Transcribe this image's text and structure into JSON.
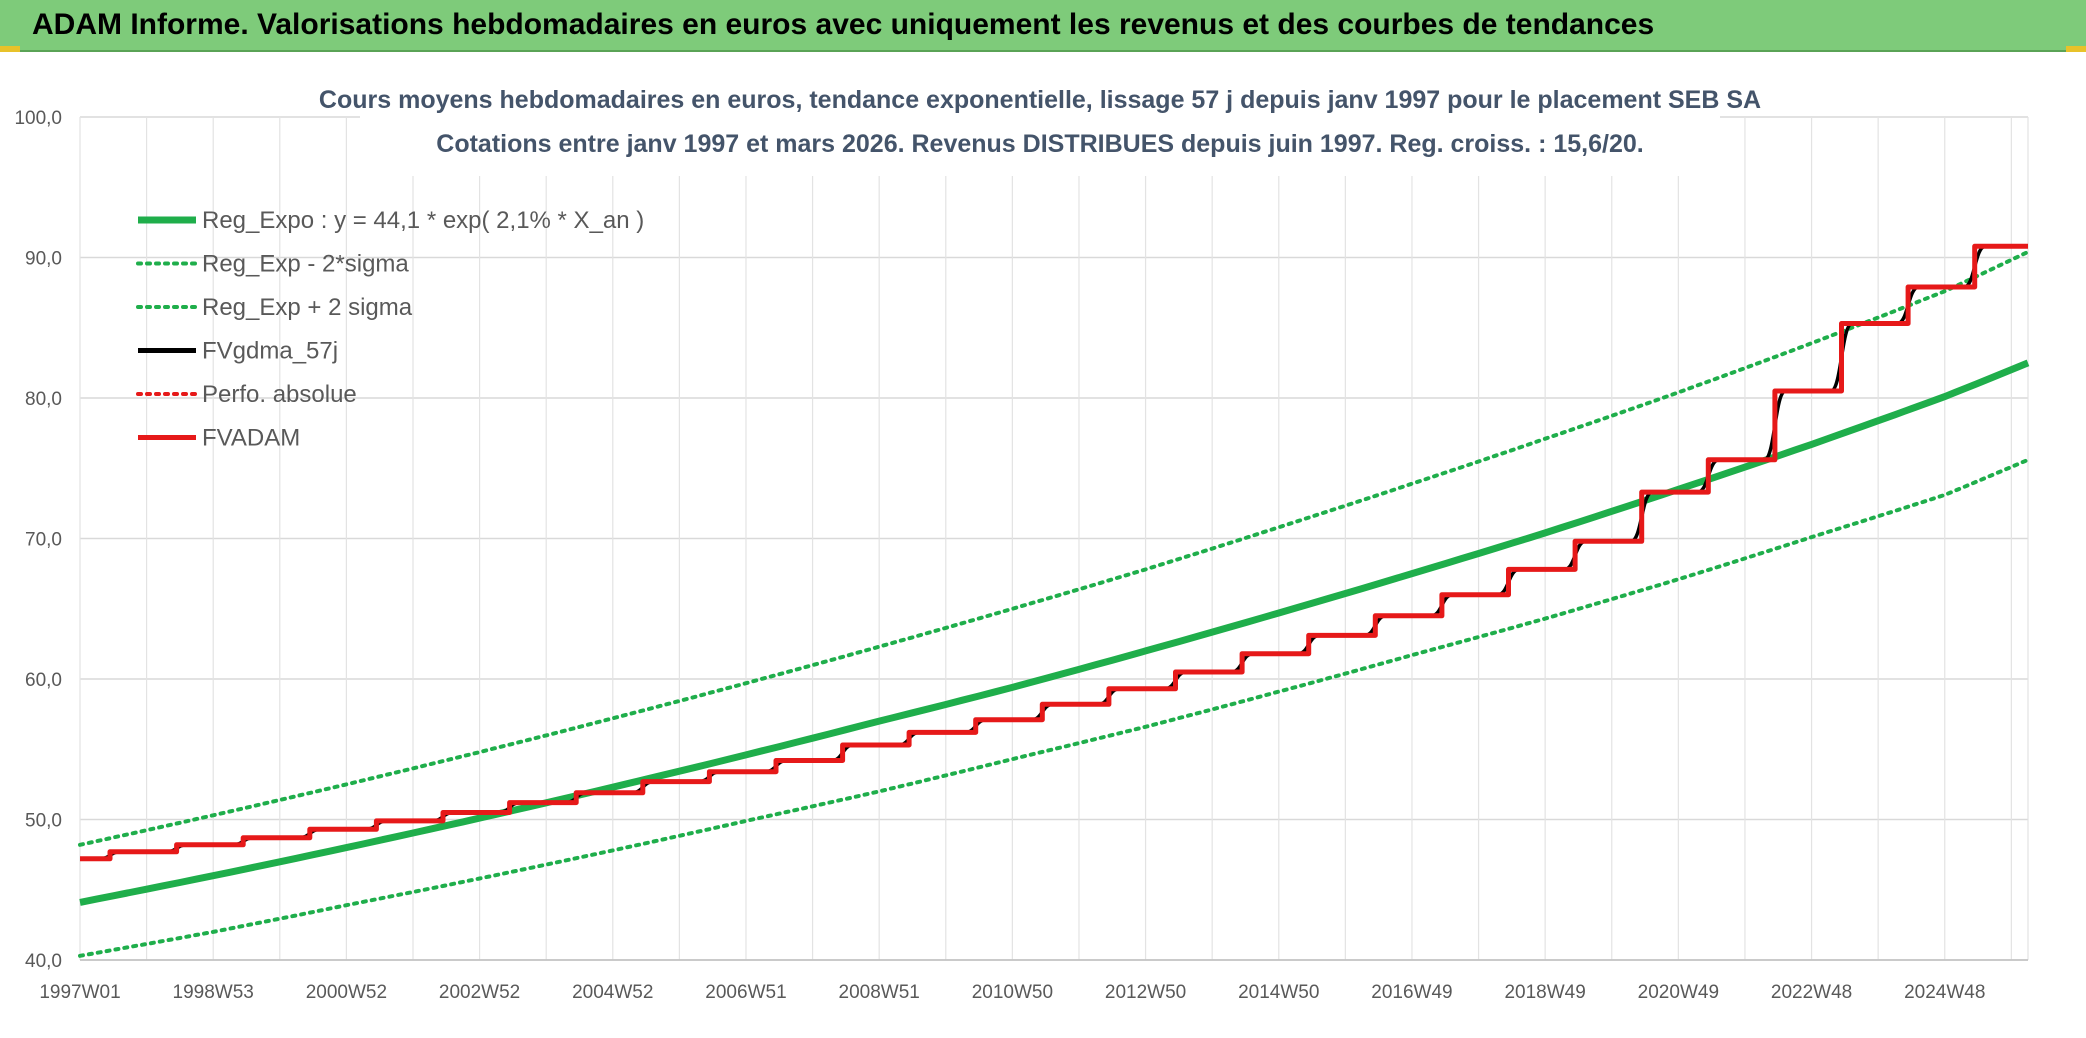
{
  "header": {
    "title": "ADAM Informe. Valorisations hebdomadaires en euros avec uniquement les revenus et des courbes de tendances"
  },
  "colors": {
    "green": "#1fae4b",
    "black": "#000000",
    "red": "#e61919",
    "header_bg": "#7ecb7a"
  },
  "chart_data": {
    "type": "line",
    "title": "Cours moyens hebdomadaires en euros, tendance exponentielle, lissage 57 j depuis janv 1997 pour le placement SEB SA",
    "subtitle": "Cotations entre janv 1997 et mars 2026. Revenus DISTRIBUES depuis juin 1997. Reg. croiss. : 15,6/20.",
    "xlabel": "",
    "ylabel": "",
    "ylim": [
      40,
      100
    ],
    "yticks": [
      "40,0",
      "50,0",
      "60,0",
      "70,0",
      "80,0",
      "90,0",
      "100,0"
    ],
    "xlim": [
      1997.0,
      2026.25
    ],
    "xticks": [
      {
        "label": "1997W01",
        "x": 1997.0
      },
      {
        "label": "1998W53",
        "x": 1999.0
      },
      {
        "label": "2000W52",
        "x": 2001.0
      },
      {
        "label": "2002W52",
        "x": 2003.0
      },
      {
        "label": "2004W52",
        "x": 2005.0
      },
      {
        "label": "2006W51",
        "x": 2007.0
      },
      {
        "label": "2008W51",
        "x": 2009.0
      },
      {
        "label": "2010W50",
        "x": 2011.0
      },
      {
        "label": "2012W50",
        "x": 2013.0
      },
      {
        "label": "2014W50",
        "x": 2015.0
      },
      {
        "label": "2016W49",
        "x": 2017.0
      },
      {
        "label": "2018W49",
        "x": 2019.0
      },
      {
        "label": "2020W49",
        "x": 2021.0
      },
      {
        "label": "2022W48",
        "x": 2023.0
      },
      {
        "label": "2024W48",
        "x": 2025.0
      }
    ],
    "grid": true,
    "legend_position": "top-left",
    "series": [
      {
        "name": "Reg_Expo : y = 44,1 * exp( 2,1% *  X_an )",
        "style": "solid-thick",
        "color": "#1fae4b",
        "x": [
          1997.0,
          1999.0,
          2001.0,
          2003.0,
          2005.0,
          2007.0,
          2009.0,
          2011.0,
          2013.0,
          2015.0,
          2017.0,
          2019.0,
          2021.0,
          2023.0,
          2025.0,
          2026.25
        ],
        "y": [
          44.1,
          46.0,
          48.0,
          50.1,
          52.3,
          54.6,
          57.0,
          59.4,
          62.0,
          64.7,
          67.5,
          70.4,
          73.5,
          76.7,
          80.1,
          82.5
        ]
      },
      {
        "name": "Reg_Exp - 2*sigma",
        "style": "dotted",
        "color": "#1fae4b",
        "x": [
          1997.0,
          1999.0,
          2001.0,
          2003.0,
          2005.0,
          2007.0,
          2009.0,
          2011.0,
          2013.0,
          2015.0,
          2017.0,
          2019.0,
          2021.0,
          2023.0,
          2025.0,
          2026.25
        ],
        "y": [
          40.3,
          42.0,
          43.9,
          45.8,
          47.8,
          49.9,
          52.0,
          54.3,
          56.6,
          59.1,
          61.7,
          64.3,
          67.1,
          70.1,
          73.1,
          75.6
        ]
      },
      {
        "name": "Reg_Exp + 2 sigma",
        "style": "dotted",
        "color": "#1fae4b",
        "x": [
          1997.0,
          1999.0,
          2001.0,
          2003.0,
          2005.0,
          2007.0,
          2009.0,
          2011.0,
          2013.0,
          2015.0,
          2017.0,
          2019.0,
          2021.0,
          2023.0,
          2025.0,
          2026.25
        ],
        "y": [
          48.2,
          50.3,
          52.5,
          54.8,
          57.2,
          59.7,
          62.3,
          65.0,
          67.8,
          70.8,
          73.9,
          77.1,
          80.4,
          83.9,
          87.6,
          90.4
        ]
      },
      {
        "name": "FVgdma_57j",
        "style": "solid-smooth-steps",
        "color": "#000000",
        "steps": [
          {
            "x": 1997.0,
            "y": 47.2
          },
          {
            "x": 1997.45,
            "y": 47.7
          },
          {
            "x": 1998.45,
            "y": 48.2
          },
          {
            "x": 1999.45,
            "y": 48.7
          },
          {
            "x": 2000.45,
            "y": 49.3
          },
          {
            "x": 2001.45,
            "y": 49.9
          },
          {
            "x": 2002.45,
            "y": 50.5
          },
          {
            "x": 2003.45,
            "y": 51.2
          },
          {
            "x": 2004.45,
            "y": 51.9
          },
          {
            "x": 2005.45,
            "y": 52.7
          },
          {
            "x": 2006.45,
            "y": 53.4
          },
          {
            "x": 2007.45,
            "y": 54.2
          },
          {
            "x": 2008.45,
            "y": 55.3
          },
          {
            "x": 2009.45,
            "y": 56.2
          },
          {
            "x": 2010.45,
            "y": 57.1
          },
          {
            "x": 2011.45,
            "y": 58.2
          },
          {
            "x": 2012.45,
            "y": 59.3
          },
          {
            "x": 2013.45,
            "y": 60.5
          },
          {
            "x": 2014.45,
            "y": 61.8
          },
          {
            "x": 2015.45,
            "y": 63.1
          },
          {
            "x": 2016.45,
            "y": 64.5
          },
          {
            "x": 2017.45,
            "y": 66.0
          },
          {
            "x": 2018.45,
            "y": 67.8
          },
          {
            "x": 2019.45,
            "y": 69.8
          },
          {
            "x": 2020.45,
            "y": 73.3
          },
          {
            "x": 2021.45,
            "y": 75.6
          },
          {
            "x": 2022.45,
            "y": 80.5
          },
          {
            "x": 2023.45,
            "y": 85.3
          },
          {
            "x": 2024.45,
            "y": 87.9
          },
          {
            "x": 2025.45,
            "y": 90.8
          }
        ],
        "x_end": 2026.25
      },
      {
        "name": "Perfo. absolue",
        "style": "dotted",
        "color": "#e61919",
        "x": [],
        "y": []
      },
      {
        "name": "FVADAM",
        "style": "solid-steps",
        "color": "#e61919",
        "steps": [
          {
            "x": 1997.0,
            "y": 47.2
          },
          {
            "x": 1997.45,
            "y": 47.7
          },
          {
            "x": 1998.45,
            "y": 48.2
          },
          {
            "x": 1999.45,
            "y": 48.7
          },
          {
            "x": 2000.45,
            "y": 49.3
          },
          {
            "x": 2001.45,
            "y": 49.9
          },
          {
            "x": 2002.45,
            "y": 50.5
          },
          {
            "x": 2003.45,
            "y": 51.2
          },
          {
            "x": 2004.45,
            "y": 51.9
          },
          {
            "x": 2005.45,
            "y": 52.7
          },
          {
            "x": 2006.45,
            "y": 53.4
          },
          {
            "x": 2007.45,
            "y": 54.2
          },
          {
            "x": 2008.45,
            "y": 55.3
          },
          {
            "x": 2009.45,
            "y": 56.2
          },
          {
            "x": 2010.45,
            "y": 57.1
          },
          {
            "x": 2011.45,
            "y": 58.2
          },
          {
            "x": 2012.45,
            "y": 59.3
          },
          {
            "x": 2013.45,
            "y": 60.5
          },
          {
            "x": 2014.45,
            "y": 61.8
          },
          {
            "x": 2015.45,
            "y": 63.1
          },
          {
            "x": 2016.45,
            "y": 64.5
          },
          {
            "x": 2017.45,
            "y": 66.0
          },
          {
            "x": 2018.45,
            "y": 67.8
          },
          {
            "x": 2019.45,
            "y": 69.8
          },
          {
            "x": 2020.45,
            "y": 73.3
          },
          {
            "x": 2021.45,
            "y": 75.6
          },
          {
            "x": 2022.45,
            "y": 80.5
          },
          {
            "x": 2023.45,
            "y": 85.3
          },
          {
            "x": 2024.45,
            "y": 87.9
          },
          {
            "x": 2025.45,
            "y": 90.8
          }
        ],
        "x_end": 2026.25
      }
    ]
  }
}
